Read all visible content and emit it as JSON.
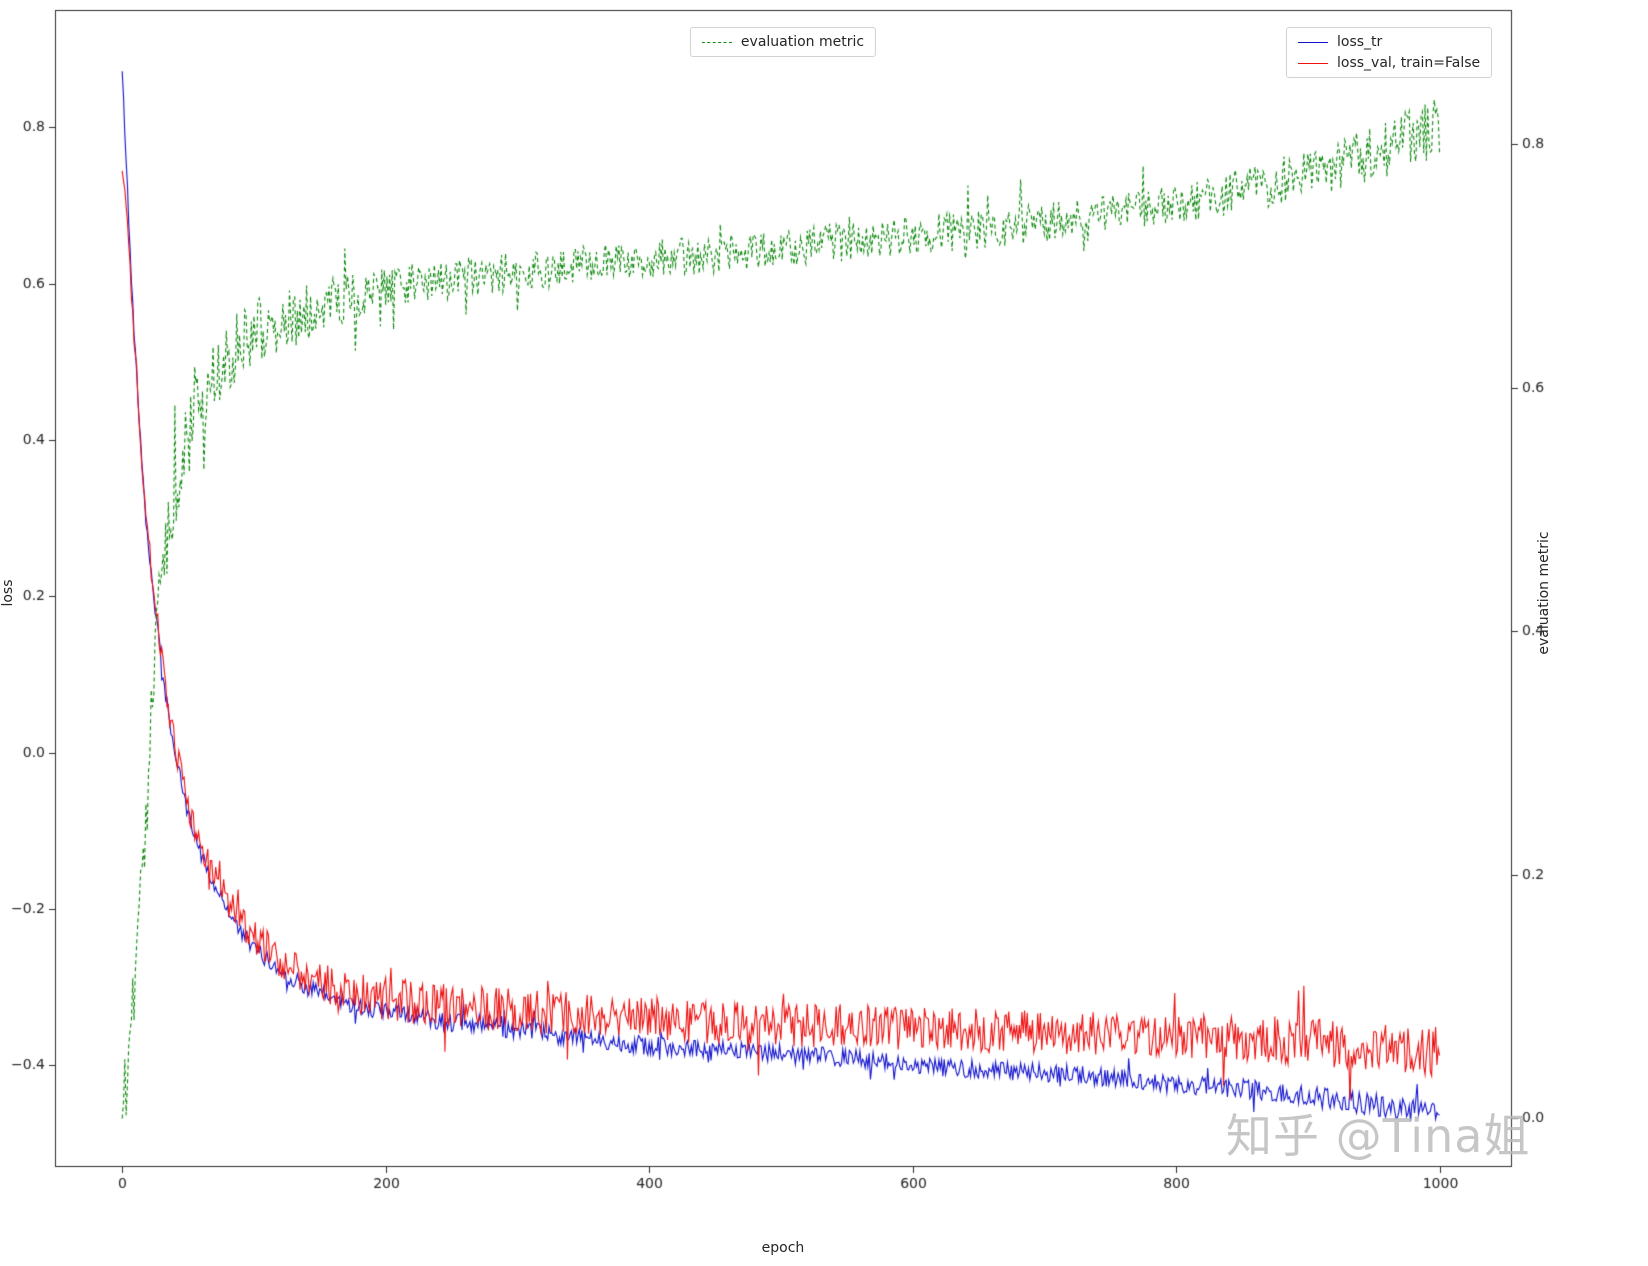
{
  "watermark": "知乎 @Tina姐",
  "chart_data": {
    "type": "line",
    "title": "",
    "xlabel": "epoch",
    "ylabel_left": "loss",
    "ylabel_right": "evaluation metric",
    "xlim": [
      -51,
      1055
    ],
    "ylim_left": [
      -0.53,
      0.95
    ],
    "ylim_right": [
      -0.04,
      0.91
    ],
    "x_ticks": [
      0,
      200,
      400,
      600,
      800,
      1000
    ],
    "y_ticks_left": [
      -0.4,
      -0.2,
      0.0,
      0.2,
      0.4,
      0.6,
      0.8
    ],
    "y_ticks_right": [
      0.0,
      0.2,
      0.4,
      0.6,
      0.8
    ],
    "grid": false,
    "background": "#ffffff",
    "axis_color": "#2b2b2b",
    "tick_label_color": "#262626",
    "legend_center": {
      "label": "evaluation metric"
    },
    "legend_right": {
      "items": [
        {
          "label": "loss_tr"
        },
        {
          "label": "loss_val, train=False"
        }
      ]
    },
    "series": [
      {
        "name": "loss_tr",
        "axis": "left",
        "color": "#1414cf",
        "style": "solid",
        "noise": 0.012,
        "noise_early": 0.7,
        "noise_late": 1.25,
        "keypoints": [
          [
            0,
            0.87
          ],
          [
            3,
            0.76
          ],
          [
            6,
            0.64
          ],
          [
            10,
            0.51
          ],
          [
            14,
            0.4
          ],
          [
            18,
            0.3
          ],
          [
            22,
            0.23
          ],
          [
            26,
            0.17
          ],
          [
            30,
            0.11
          ],
          [
            35,
            0.05
          ],
          [
            40,
            0.0
          ],
          [
            45,
            -0.04
          ],
          [
            50,
            -0.08
          ],
          [
            60,
            -0.13
          ],
          [
            70,
            -0.17
          ],
          [
            80,
            -0.2
          ],
          [
            90,
            -0.23
          ],
          [
            100,
            -0.25
          ],
          [
            120,
            -0.28
          ],
          [
            140,
            -0.3
          ],
          [
            160,
            -0.315
          ],
          [
            180,
            -0.325
          ],
          [
            200,
            -0.33
          ],
          [
            250,
            -0.345
          ],
          [
            300,
            -0.355
          ],
          [
            350,
            -0.365
          ],
          [
            400,
            -0.375
          ],
          [
            450,
            -0.38
          ],
          [
            500,
            -0.385
          ],
          [
            550,
            -0.39
          ],
          [
            600,
            -0.4
          ],
          [
            650,
            -0.405
          ],
          [
            700,
            -0.41
          ],
          [
            750,
            -0.415
          ],
          [
            800,
            -0.425
          ],
          [
            850,
            -0.43
          ],
          [
            900,
            -0.44
          ],
          [
            950,
            -0.45
          ],
          [
            1000,
            -0.462
          ]
        ]
      },
      {
        "name": "loss_val, train=False",
        "axis": "left",
        "color": "#ee1111",
        "style": "solid",
        "noise": 0.028,
        "noise_early": 0.5,
        "noise_late": 1.2,
        "keypoints": [
          [
            0,
            0.75
          ],
          [
            3,
            0.69
          ],
          [
            6,
            0.62
          ],
          [
            10,
            0.51
          ],
          [
            14,
            0.4
          ],
          [
            18,
            0.31
          ],
          [
            22,
            0.235
          ],
          [
            26,
            0.175
          ],
          [
            30,
            0.12
          ],
          [
            35,
            0.06
          ],
          [
            40,
            0.01
          ],
          [
            45,
            -0.03
          ],
          [
            50,
            -0.07
          ],
          [
            60,
            -0.12
          ],
          [
            70,
            -0.16
          ],
          [
            80,
            -0.19
          ],
          [
            90,
            -0.215
          ],
          [
            100,
            -0.235
          ],
          [
            120,
            -0.265
          ],
          [
            140,
            -0.285
          ],
          [
            160,
            -0.3
          ],
          [
            180,
            -0.308
          ],
          [
            200,
            -0.315
          ],
          [
            250,
            -0.325
          ],
          [
            300,
            -0.33
          ],
          [
            350,
            -0.335
          ],
          [
            400,
            -0.34
          ],
          [
            450,
            -0.345
          ],
          [
            500,
            -0.348
          ],
          [
            550,
            -0.35
          ],
          [
            600,
            -0.353
          ],
          [
            650,
            -0.355
          ],
          [
            700,
            -0.358
          ],
          [
            750,
            -0.36
          ],
          [
            800,
            -0.363
          ],
          [
            850,
            -0.365
          ],
          [
            900,
            -0.37
          ],
          [
            950,
            -0.375
          ],
          [
            1000,
            -0.385
          ]
        ]
      },
      {
        "name": "evaluation metric",
        "axis": "right",
        "color": "#0f8a0f",
        "style": "dashed",
        "noise": 0.016,
        "noise_early": 2.4,
        "noise_late": 1.6,
        "keypoints": [
          [
            0,
            0.01
          ],
          [
            5,
            0.05
          ],
          [
            10,
            0.12
          ],
          [
            15,
            0.2
          ],
          [
            20,
            0.3
          ],
          [
            25,
            0.38
          ],
          [
            30,
            0.44
          ],
          [
            35,
            0.48
          ],
          [
            40,
            0.515
          ],
          [
            50,
            0.555
          ],
          [
            60,
            0.59
          ],
          [
            70,
            0.61
          ],
          [
            80,
            0.625
          ],
          [
            100,
            0.645
          ],
          [
            120,
            0.655
          ],
          [
            150,
            0.665
          ],
          [
            200,
            0.683
          ],
          [
            250,
            0.69
          ],
          [
            300,
            0.695
          ],
          [
            350,
            0.7
          ],
          [
            400,
            0.705
          ],
          [
            450,
            0.71
          ],
          [
            500,
            0.715
          ],
          [
            550,
            0.72
          ],
          [
            600,
            0.725
          ],
          [
            650,
            0.73
          ],
          [
            700,
            0.735
          ],
          [
            750,
            0.742
          ],
          [
            800,
            0.75
          ],
          [
            850,
            0.762
          ],
          [
            900,
            0.775
          ],
          [
            950,
            0.792
          ],
          [
            1000,
            0.815
          ]
        ]
      }
    ]
  }
}
